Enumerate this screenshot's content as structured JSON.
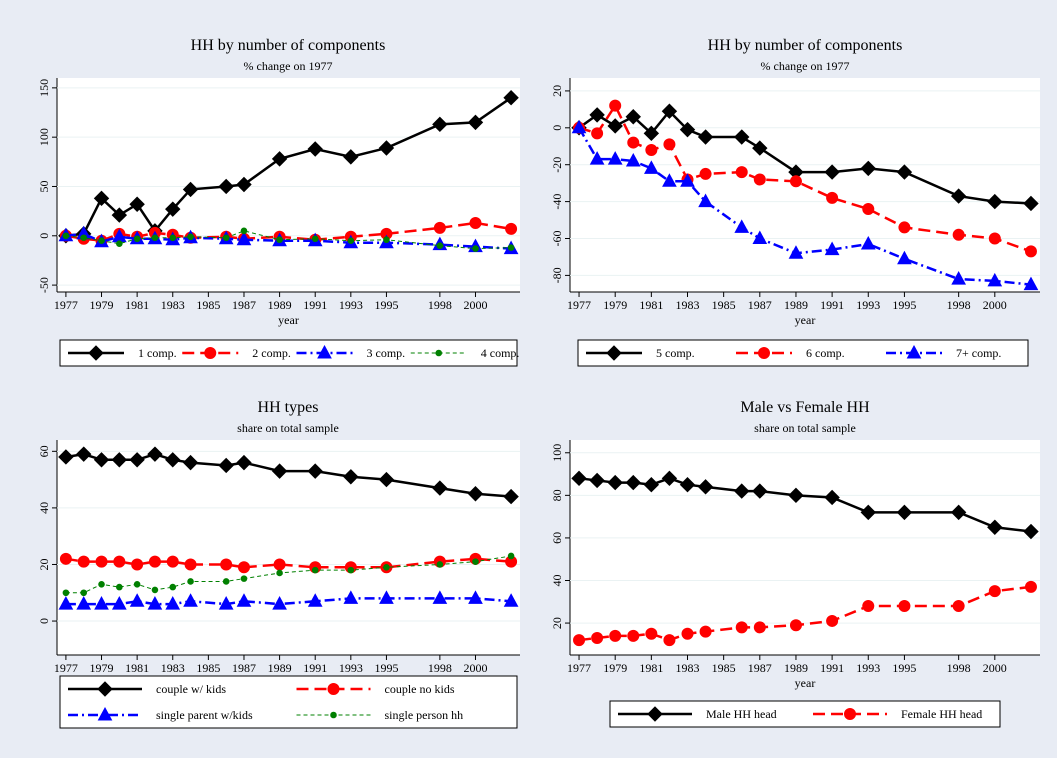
{
  "chart_data": [
    {
      "type": "line",
      "title": "HH by number of components",
      "subtitle": "% change on 1977",
      "xlabel": "year",
      "x": [
        1977,
        1978,
        1979,
        1980,
        1981,
        1982,
        1983,
        1984,
        1986,
        1987,
        1989,
        1991,
        1993,
        1995,
        1998,
        2000,
        2002
      ],
      "xlim": [
        1976.5,
        2002.5
      ],
      "xticks": [
        1977,
        1979,
        1981,
        1983,
        1985,
        1987,
        1989,
        1991,
        1993,
        1995,
        1998,
        2000
      ],
      "ylim": [
        -57,
        160
      ],
      "yticks": [
        -50,
        0,
        50,
        100,
        150
      ],
      "legend_columns": 4,
      "series": [
        {
          "name": "1 comp.",
          "color": "#000000",
          "marker": "diamond",
          "dash": "solid",
          "values": [
            0,
            2,
            38,
            21,
            32,
            5,
            27,
            47,
            50,
            52,
            78,
            88,
            80,
            89,
            113,
            115,
            140
          ]
        },
        {
          "name": "2 comp.",
          "color": "#ff0000",
          "marker": "circle",
          "dash": "longdash",
          "values": [
            0,
            -3,
            -5,
            2,
            -1,
            3,
            1,
            -2,
            -1,
            -3,
            -1,
            -4,
            -1,
            2,
            8,
            13,
            7
          ]
        },
        {
          "name": "3 comp.",
          "color": "#0000ff",
          "marker": "triangle",
          "dash": "dashdot",
          "values": [
            0,
            2,
            -6,
            -1,
            -3,
            -3,
            -4,
            -2,
            -3,
            -4,
            -5,
            -5,
            -7,
            -7,
            -9,
            -11,
            -13
          ]
        },
        {
          "name": "4 comp.",
          "color": "#008000",
          "marker": "dot",
          "dash": "shortdash",
          "values": [
            0,
            -2,
            -5,
            -8,
            -3,
            -2,
            -2,
            -1,
            -2,
            5,
            -4,
            -3,
            -5,
            -4,
            -10,
            -13,
            -12
          ]
        }
      ]
    },
    {
      "type": "line",
      "title": "HH by number of components",
      "subtitle": "% change on 1977",
      "xlabel": "year",
      "x": [
        1977,
        1978,
        1979,
        1980,
        1981,
        1982,
        1983,
        1984,
        1986,
        1987,
        1989,
        1991,
        1993,
        1995,
        1998,
        2000,
        2002
      ],
      "xlim": [
        1976.5,
        2002.5
      ],
      "xticks": [
        1977,
        1979,
        1981,
        1983,
        1985,
        1987,
        1989,
        1991,
        1993,
        1995,
        1998,
        2000
      ],
      "ylim": [
        -89,
        27
      ],
      "yticks": [
        -80,
        -60,
        -40,
        -20,
        0,
        20
      ],
      "legend_columns": 3,
      "series": [
        {
          "name": "5 comp.",
          "color": "#000000",
          "marker": "diamond",
          "dash": "solid",
          "values": [
            0,
            7,
            1,
            6,
            -3,
            9,
            -1,
            -5,
            -5,
            -11,
            -24,
            -24,
            -22,
            -24,
            -37,
            -40,
            -41
          ]
        },
        {
          "name": "6 comp.",
          "color": "#ff0000",
          "marker": "circle",
          "dash": "longdash",
          "values": [
            0,
            -3,
            12,
            -8,
            -12,
            -9,
            -28,
            -25,
            -24,
            -28,
            -29,
            -38,
            -44,
            -54,
            -58,
            -60,
            -67
          ]
        },
        {
          "name": "7+ comp.",
          "color": "#0000ff",
          "marker": "triangle",
          "dash": "dashdot",
          "values": [
            0,
            -17,
            -17,
            -18,
            -22,
            -29,
            -29,
            -40,
            -54,
            -60,
            -68,
            -66,
            -63,
            -71,
            -82,
            -83,
            -85
          ]
        }
      ]
    },
    {
      "type": "line",
      "title": "HH types",
      "subtitle": "share on total sample",
      "xlabel": "year",
      "x": [
        1977,
        1978,
        1979,
        1980,
        1981,
        1982,
        1983,
        1984,
        1986,
        1987,
        1989,
        1991,
        1993,
        1995,
        1998,
        2000,
        2002
      ],
      "xlim": [
        1976.5,
        2002.5
      ],
      "xticks": [
        1977,
        1979,
        1981,
        1983,
        1985,
        1987,
        1989,
        1991,
        1993,
        1995,
        1998,
        2000
      ],
      "ylim": [
        -12,
        64
      ],
      "yticks": [
        0,
        20,
        40,
        60
      ],
      "legend_columns": 2,
      "series": [
        {
          "name": "couple w/ kids",
          "color": "#000000",
          "marker": "diamond",
          "dash": "solid",
          "values": [
            58,
            59,
            57,
            57,
            57,
            59,
            57,
            56,
            55,
            56,
            53,
            53,
            51,
            50,
            47,
            45,
            44
          ]
        },
        {
          "name": "couple no kids",
          "color": "#ff0000",
          "marker": "circle",
          "dash": "longdash",
          "values": [
            22,
            21,
            21,
            21,
            20,
            21,
            21,
            20,
            20,
            19,
            20,
            19,
            19,
            19,
            21,
            22,
            21
          ]
        },
        {
          "name": "single parent w/kids",
          "color": "#0000ff",
          "marker": "triangle",
          "dash": "dashdot",
          "values": [
            6,
            6,
            6,
            6,
            7,
            6,
            6,
            7,
            6,
            7,
            6,
            7,
            8,
            8,
            8,
            8,
            7
          ]
        },
        {
          "name": "single person hh",
          "color": "#008000",
          "marker": "dot",
          "dash": "shortdash",
          "values": [
            10,
            10,
            13,
            12,
            13,
            11,
            12,
            14,
            14,
            15,
            17,
            18,
            18,
            19,
            20,
            21,
            23
          ]
        }
      ]
    },
    {
      "type": "line",
      "title": "Male vs Female HH",
      "subtitle": "share on total sample",
      "xlabel": "year",
      "x": [
        1977,
        1978,
        1979,
        1980,
        1981,
        1982,
        1983,
        1984,
        1986,
        1987,
        1989,
        1991,
        1993,
        1995,
        1998,
        2000,
        2002
      ],
      "xlim": [
        1976.5,
        2002.5
      ],
      "xticks": [
        1977,
        1979,
        1981,
        1983,
        1985,
        1987,
        1989,
        1991,
        1993,
        1995,
        1998,
        2000
      ],
      "ylim": [
        5,
        106
      ],
      "yticks": [
        20,
        40,
        60,
        80,
        100
      ],
      "legend_columns": 2,
      "series": [
        {
          "name": "Male HH head",
          "color": "#000000",
          "marker": "diamond",
          "dash": "solid",
          "values": [
            88,
            87,
            86,
            86,
            85,
            88,
            85,
            84,
            82,
            82,
            80,
            79,
            72,
            72,
            72,
            65,
            63
          ]
        },
        {
          "name": "Female HH head",
          "color": "#ff0000",
          "marker": "circle",
          "dash": "longdash",
          "values": [
            12,
            13,
            14,
            14,
            15,
            12,
            15,
            16,
            18,
            18,
            19,
            21,
            28,
            28,
            28,
            35,
            37
          ]
        }
      ]
    }
  ]
}
